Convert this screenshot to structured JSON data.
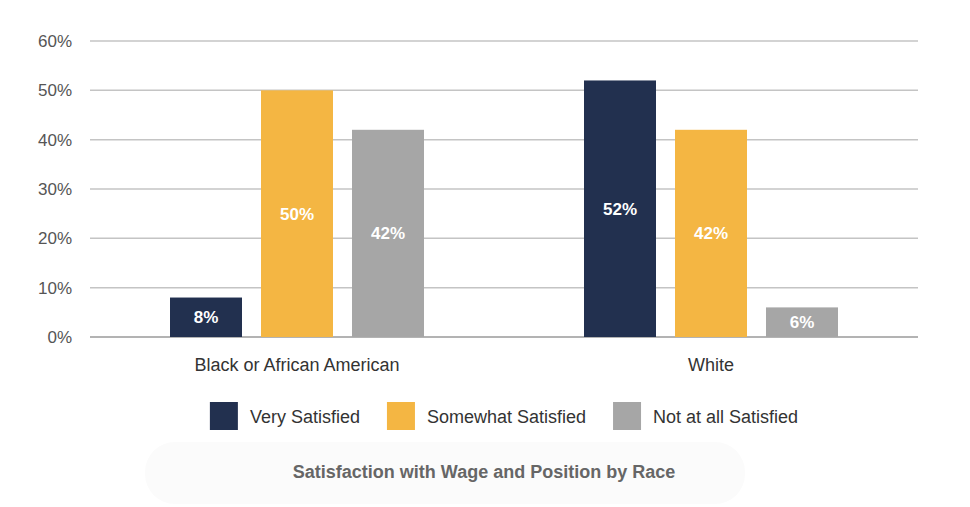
{
  "chart_data": {
    "type": "bar",
    "title": "Satisfaction with Wage and Position by Race",
    "categories": [
      "Black or African American",
      "White"
    ],
    "series": [
      {
        "name": "Very Satisfied",
        "color": "#22304f",
        "values": [
          8,
          52
        ],
        "value_labels": [
          "8%",
          "52%"
        ]
      },
      {
        "name": "Somewhat Satisfied",
        "color": "#f4b643",
        "values": [
          50,
          42
        ],
        "value_labels": [
          "50%",
          "42%"
        ]
      },
      {
        "name": "Not at all Satisfied",
        "color": "#a6a6a6",
        "values": [
          42,
          6
        ],
        "value_labels": [
          "42%",
          "6%"
        ]
      }
    ],
    "ylim": [
      0,
      60
    ],
    "yticks": [
      {
        "value": 0,
        "label": "0%"
      },
      {
        "value": 10,
        "label": "10%"
      },
      {
        "value": 20,
        "label": "20%"
      },
      {
        "value": 30,
        "label": "30%"
      },
      {
        "value": 40,
        "label": "40%"
      },
      {
        "value": 50,
        "label": "50%"
      },
      {
        "value": 60,
        "label": "60%"
      }
    ],
    "grid": true,
    "legend": "bottom",
    "data_labels": true
  }
}
